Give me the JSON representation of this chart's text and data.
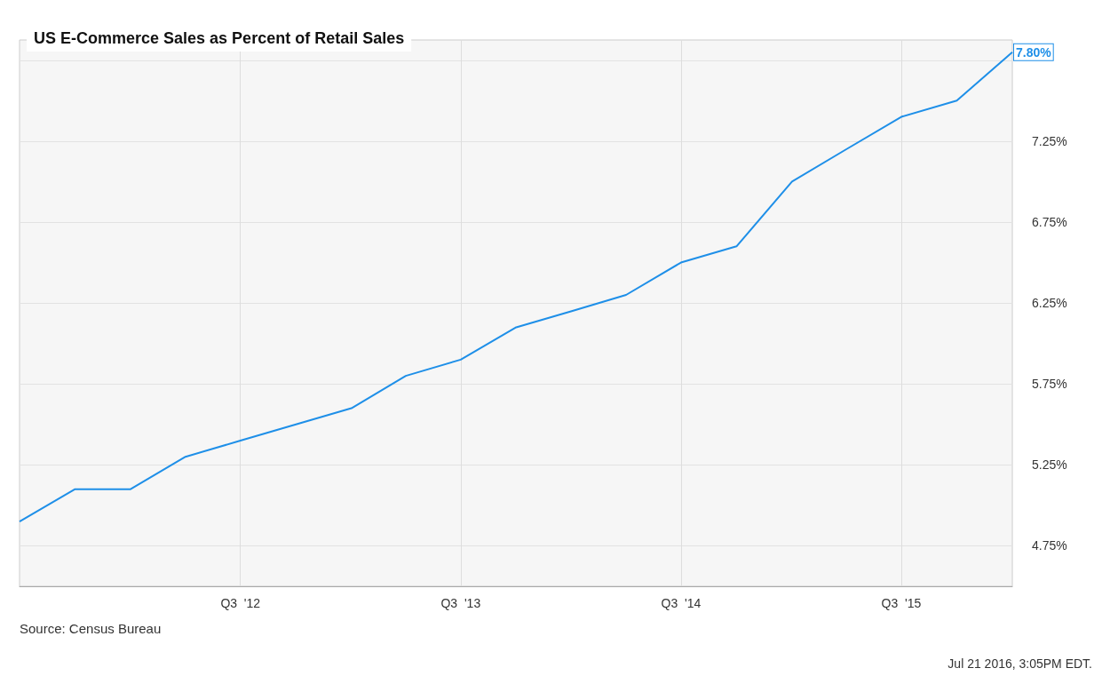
{
  "chart_data": {
    "type": "line",
    "title": "US E-Commerce Sales as Percent of Retail Sales",
    "x": [
      "2011-07",
      "2011-10",
      "2012-01",
      "2012-04",
      "2012-07",
      "2012-10",
      "2013-01",
      "2013-04",
      "2013-07",
      "2013-10",
      "2014-01",
      "2014-04",
      "2014-07",
      "2014-10",
      "2015-01",
      "2015-04",
      "2015-07",
      "2015-10",
      "2016-01"
    ],
    "series": [
      {
        "color": "#1e8fe8",
        "values": [
          4.9,
          5.1,
          5.1,
          5.3,
          5.4,
          5.5,
          5.6,
          5.8,
          5.9,
          6.1,
          6.2,
          6.3,
          6.5,
          6.6,
          7.0,
          7.2,
          7.4,
          7.5,
          7.8
        ],
        "value_labels": [
          null,
          null,
          null,
          null,
          null,
          null,
          null,
          null,
          null,
          null,
          null,
          null,
          null,
          null,
          null,
          null,
          null,
          null,
          "7.80%"
        ]
      }
    ],
    "xlim": [
      "2011-07",
      "2016-01"
    ],
    "xticks": [
      {
        "value": "2012-07",
        "label": "Q3  '12"
      },
      {
        "value": "2013-07",
        "label": "Q3  '13"
      },
      {
        "value": "2014-07",
        "label": "Q3  '14"
      },
      {
        "value": "2015-07",
        "label": "Q3  '15"
      }
    ],
    "ylim": [
      4.5,
      7.875
    ],
    "yticks": [
      {
        "value": 4.75,
        "label": "4.75%"
      },
      {
        "value": 5.25,
        "label": "5.25%"
      },
      {
        "value": 5.75,
        "label": "5.75%"
      },
      {
        "value": 6.25,
        "label": "6.25%"
      },
      {
        "value": 6.75,
        "label": "6.75%"
      },
      {
        "value": 7.25,
        "label": "7.25%"
      },
      {
        "value": 7.75,
        "label": null
      }
    ],
    "grid": true,
    "marker": "none",
    "line_style": "solid",
    "annotations": [
      "Source: Census Bureau",
      "Jul 21 2016, 3:05PM EDT."
    ]
  }
}
